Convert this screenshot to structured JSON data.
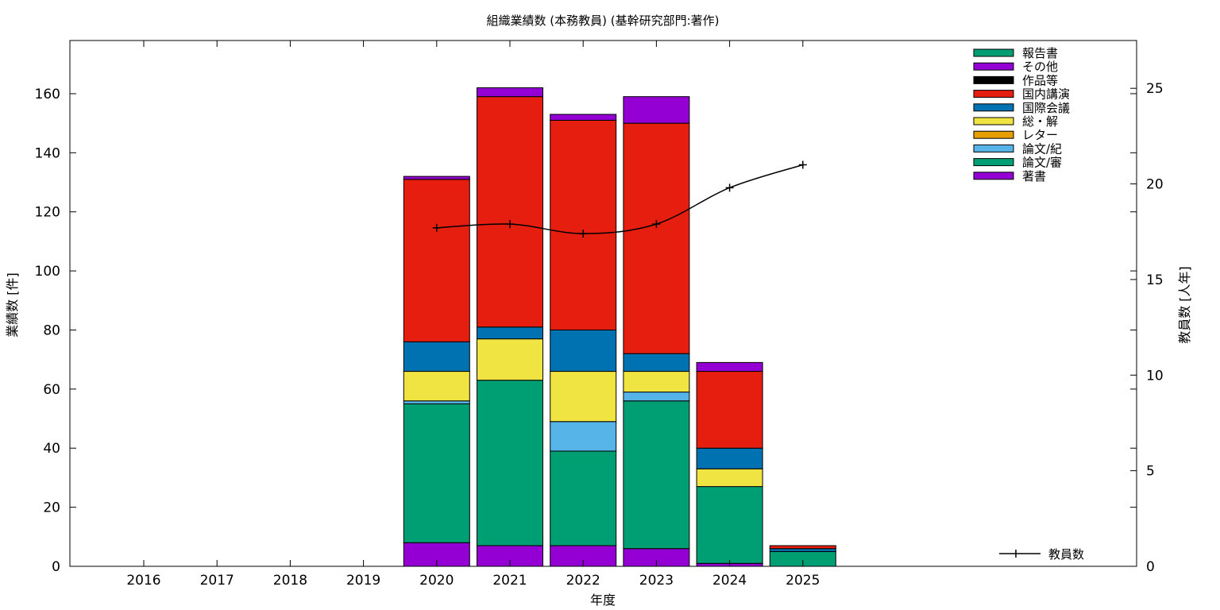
{
  "chart_data": {
    "type": "bar",
    "stacked": true,
    "title": "組織業績数 (本務教員) (基幹研究部門:著作)",
    "xlabel": "年度",
    "ylabel": "業績数 [件]",
    "y2label": "教員数 [人年]",
    "categories": [
      "2016",
      "2017",
      "2018",
      "2019",
      "2020",
      "2021",
      "2022",
      "2023",
      "2024",
      "2025"
    ],
    "ylim": [
      0,
      178
    ],
    "yticks": [
      0,
      20,
      40,
      60,
      80,
      100,
      120,
      140,
      160
    ],
    "y2lim": [
      0,
      27.5
    ],
    "y2ticks": [
      0,
      5,
      10,
      15,
      20,
      25
    ],
    "grid": false,
    "legend_position": "top-right",
    "series": [
      {
        "name": "著書",
        "color": "#9400d3",
        "values": [
          0,
          0,
          0,
          0,
          8,
          7,
          7,
          6,
          1,
          0
        ]
      },
      {
        "name": "論文/審",
        "color": "#009e73",
        "values": [
          0,
          0,
          0,
          0,
          47,
          56,
          32,
          50,
          26,
          5
        ]
      },
      {
        "name": "論文/紀",
        "color": "#56b4e9",
        "values": [
          0,
          0,
          0,
          0,
          1,
          0,
          10,
          3,
          0,
          0
        ]
      },
      {
        "name": "レター",
        "color": "#e69f00",
        "values": [
          0,
          0,
          0,
          0,
          0,
          0,
          0,
          0,
          0,
          0
        ]
      },
      {
        "name": "総・解",
        "color": "#f0e442",
        "values": [
          0,
          0,
          0,
          0,
          10,
          14,
          17,
          7,
          6,
          0
        ]
      },
      {
        "name": "国際会議",
        "color": "#0072b2",
        "values": [
          0,
          0,
          0,
          0,
          10,
          4,
          14,
          6,
          7,
          1
        ]
      },
      {
        "name": "国内講演",
        "color": "#e51e10",
        "values": [
          0,
          0,
          0,
          0,
          55,
          78,
          71,
          78,
          26,
          1
        ]
      },
      {
        "name": "作品等",
        "color": "#000000",
        "values": [
          0,
          0,
          0,
          0,
          0,
          0,
          0,
          0,
          0,
          0
        ]
      },
      {
        "name": "その他",
        "color": "#9400d3",
        "values": [
          0,
          0,
          0,
          0,
          1,
          3,
          2,
          9,
          3,
          0
        ]
      },
      {
        "name": "報告書",
        "color": "#009e73",
        "values": [
          0,
          0,
          0,
          0,
          0,
          0,
          0,
          0,
          0,
          0
        ]
      }
    ],
    "line_series": {
      "name": "教員数",
      "axis": "y2",
      "color": "#000000",
      "x": [
        "2020",
        "2021",
        "2022",
        "2023",
        "2024",
        "2025"
      ],
      "values": [
        17.7,
        17.9,
        17.4,
        17.9,
        19.8,
        21.0
      ]
    }
  }
}
